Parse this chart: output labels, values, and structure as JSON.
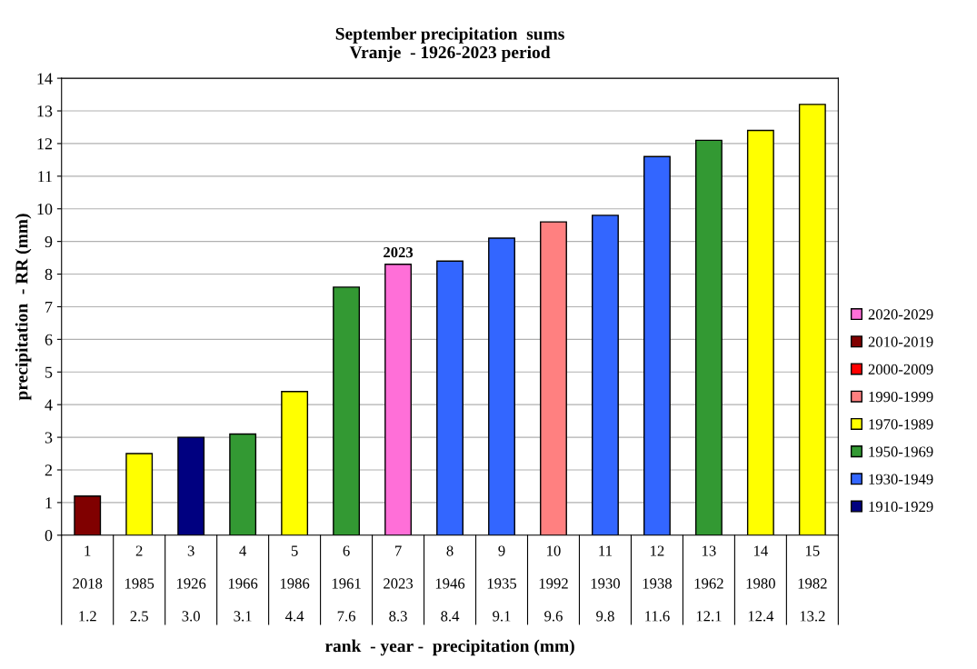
{
  "chart_data": {
    "type": "bar",
    "title": "September precipitation  sums\nVranje  - 1926-2023 period",
    "ylabel": "precipitation  - RR (mm)",
    "categories": [
      "1\n2018",
      "2\n1985",
      "3\n1926",
      "4\n1966",
      "5\n1986",
      "6\n1961",
      "7\n2023",
      "8\n1946",
      "9\n1935",
      "10\n1992",
      "11\n1930",
      "12\n1938",
      "13\n1962",
      "14\n1980",
      "15\n1982"
    ],
    "series": [
      {
        "name": "2020-2029",
        "color": "#ff6fd8",
        "values": [
          null,
          null,
          null,
          null,
          null,
          null,
          8.3,
          null,
          null,
          null,
          null,
          null,
          null,
          null,
          null
        ]
      },
      {
        "name": "2010-2019",
        "color": "#800000",
        "values": [
          1.2,
          null,
          null,
          null,
          null,
          null,
          null,
          null,
          null,
          null,
          null,
          null,
          null,
          null,
          null
        ]
      },
      {
        "name": "2000-2009",
        "color": "#ff0000",
        "values": [
          null,
          null,
          null,
          null,
          null,
          null,
          null,
          null,
          null,
          null,
          null,
          null,
          null,
          null,
          null
        ]
      },
      {
        "name": "1990-1999",
        "color": "#ff8080",
        "values": [
          null,
          null,
          null,
          null,
          null,
          null,
          null,
          null,
          null,
          9.6,
          null,
          null,
          null,
          null,
          null
        ]
      },
      {
        "name": "1970-1989",
        "color": "#ffff00",
        "values": [
          null,
          2.5,
          null,
          null,
          4.4,
          null,
          null,
          null,
          null,
          null,
          null,
          null,
          null,
          12.4,
          13.2
        ]
      },
      {
        "name": "1950-1969",
        "color": "#339933",
        "values": [
          null,
          null,
          null,
          3.1,
          null,
          7.6,
          null,
          null,
          null,
          null,
          null,
          null,
          12.1,
          null,
          null
        ]
      },
      {
        "name": "1930-1949",
        "color": "#3366ff",
        "values": [
          null,
          null,
          null,
          null,
          null,
          null,
          null,
          8.4,
          9.1,
          null,
          9.8,
          11.6,
          null,
          null,
          null
        ]
      },
      {
        "name": "1910-1929",
        "color": "#000080",
        "values": [
          null,
          null,
          3.0,
          null,
          null,
          null,
          null,
          null,
          null,
          null,
          null,
          null,
          null,
          null,
          null
        ]
      }
    ],
    "value_labels": [
      "1.2",
      "2.5",
      "3.0",
      "3.1",
      "4.4",
      "7.6",
      "8.3",
      "8.4",
      "9.1",
      "9.6",
      "9.8",
      "11.6",
      "12.1",
      "12.4",
      "13.2"
    ],
    "annotations": [
      {
        "text": "2023",
        "x": "7\n2023",
        "y": 8.3
      },
      "rank  - year -  precipitation (mm)"
    ],
    "ylim": [
      0,
      14
    ],
    "yticks": [
      0,
      1,
      2,
      3,
      4,
      5,
      6,
      7,
      8,
      9,
      10,
      11,
      12,
      13,
      14
    ],
    "grid": "y",
    "legend": "right"
  }
}
